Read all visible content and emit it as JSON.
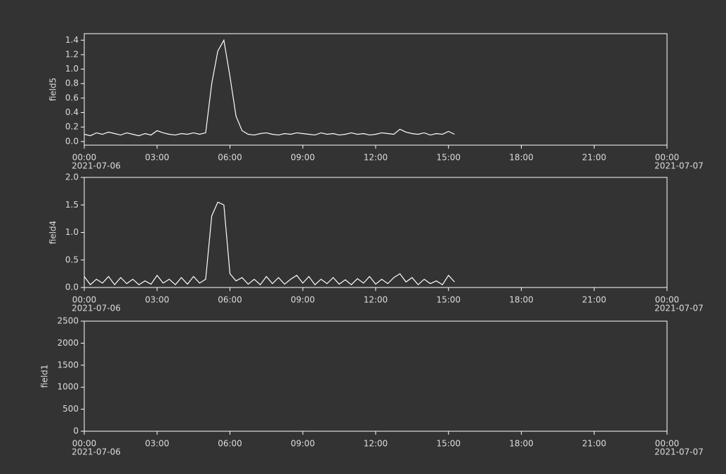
{
  "chart_data": [
    {
      "type": "line",
      "ylabel": "field5",
      "xlim": [
        0,
        24
      ],
      "ylim": [
        -0.05,
        1.49
      ],
      "xticks": [
        {
          "value": 0,
          "label": "00:00",
          "date": "2021-07-06"
        },
        {
          "value": 3,
          "label": "03:00"
        },
        {
          "value": 6,
          "label": "06:00"
        },
        {
          "value": 9,
          "label": "09:00"
        },
        {
          "value": 12,
          "label": "12:00"
        },
        {
          "value": 15,
          "label": "15:00"
        },
        {
          "value": 18,
          "label": "18:00"
        },
        {
          "value": 21,
          "label": "21:00"
        },
        {
          "value": 24,
          "label": "00:00",
          "date": "2021-07-07"
        }
      ],
      "yticks": [
        {
          "value": 0,
          "label": "0.0"
        },
        0.2,
        0.4,
        0.6,
        0.8,
        {
          "value": 1,
          "label": "1.0"
        },
        1.2,
        1.4
      ],
      "x": [
        0,
        0.25,
        0.5,
        0.75,
        1,
        1.25,
        1.5,
        1.75,
        2,
        2.25,
        2.5,
        2.75,
        3,
        3.25,
        3.5,
        3.75,
        4,
        4.25,
        4.5,
        4.75,
        5,
        5.25,
        5.5,
        5.75,
        6,
        6.25,
        6.5,
        6.75,
        7,
        7.25,
        7.5,
        7.75,
        8,
        8.25,
        8.5,
        8.75,
        9,
        9.25,
        9.5,
        9.75,
        10,
        10.25,
        10.5,
        10.75,
        11,
        11.25,
        11.5,
        11.75,
        12,
        12.25,
        12.5,
        12.75,
        13,
        13.25,
        13.5,
        13.75,
        14,
        14.25,
        14.5,
        14.75,
        15,
        15.25
      ],
      "series": [
        {
          "color": "#ffffff",
          "values": [
            0.1,
            0.08,
            0.12,
            0.1,
            0.13,
            0.11,
            0.09,
            0.12,
            0.1,
            0.08,
            0.11,
            0.09,
            0.15,
            0.12,
            0.1,
            0.09,
            0.11,
            0.1,
            0.12,
            0.1,
            0.12,
            0.8,
            1.25,
            1.4,
            0.9,
            0.35,
            0.15,
            0.1,
            0.09,
            0.11,
            0.12,
            0.1,
            0.09,
            0.11,
            0.1,
            0.12,
            0.11,
            0.1,
            0.09,
            0.12,
            0.1,
            0.11,
            0.09,
            0.1,
            0.12,
            0.1,
            0.11,
            0.09,
            0.1,
            0.12,
            0.11,
            0.1,
            0.17,
            0.13,
            0.11,
            0.1,
            0.12,
            0.09,
            0.11,
            0.1,
            0.14,
            0.1
          ]
        }
      ]
    },
    {
      "type": "line",
      "ylabel": "field4",
      "xlim": [
        0,
        24
      ],
      "ylim": [
        0,
        2
      ],
      "xticks": [
        {
          "value": 0,
          "label": "00:00",
          "date": "2021-07-06"
        },
        {
          "value": 3,
          "label": "03:00"
        },
        {
          "value": 6,
          "label": "06:00"
        },
        {
          "value": 9,
          "label": "09:00"
        },
        {
          "value": 12,
          "label": "12:00"
        },
        {
          "value": 15,
          "label": "15:00"
        },
        {
          "value": 18,
          "label": "18:00"
        },
        {
          "value": 21,
          "label": "21:00"
        },
        {
          "value": 24,
          "label": "00:00",
          "date": "2021-07-07"
        }
      ],
      "yticks": [
        {
          "value": 0,
          "label": "0.0"
        },
        0.5,
        {
          "value": 1,
          "label": "1.0"
        },
        1.5,
        {
          "value": 2,
          "label": "2.0"
        }
      ],
      "x": [
        0,
        0.25,
        0.5,
        0.75,
        1,
        1.25,
        1.5,
        1.75,
        2,
        2.25,
        2.5,
        2.75,
        3,
        3.25,
        3.5,
        3.75,
        4,
        4.25,
        4.5,
        4.75,
        5,
        5.25,
        5.5,
        5.75,
        6,
        6.25,
        6.5,
        6.75,
        7,
        7.25,
        7.5,
        7.75,
        8,
        8.25,
        8.5,
        8.75,
        9,
        9.25,
        9.5,
        9.75,
        10,
        10.25,
        10.5,
        10.75,
        11,
        11.25,
        11.5,
        11.75,
        12,
        12.25,
        12.5,
        12.75,
        13,
        13.25,
        13.5,
        13.75,
        14,
        14.25,
        14.5,
        14.75,
        15,
        15.25
      ],
      "series": [
        {
          "color": "#ffffff",
          "values": [
            0.2,
            0.05,
            0.15,
            0.08,
            0.2,
            0.05,
            0.18,
            0.07,
            0.15,
            0.05,
            0.12,
            0.06,
            0.22,
            0.08,
            0.15,
            0.05,
            0.18,
            0.06,
            0.2,
            0.08,
            0.15,
            1.3,
            1.55,
            1.5,
            0.25,
            0.12,
            0.18,
            0.06,
            0.15,
            0.05,
            0.2,
            0.07,
            0.18,
            0.06,
            0.15,
            0.22,
            0.08,
            0.2,
            0.05,
            0.15,
            0.07,
            0.18,
            0.06,
            0.14,
            0.05,
            0.16,
            0.08,
            0.2,
            0.06,
            0.15,
            0.07,
            0.18,
            0.25,
            0.1,
            0.18,
            0.05,
            0.15,
            0.07,
            0.12,
            0.05,
            0.22,
            0.1
          ]
        }
      ]
    },
    {
      "type": "line",
      "ylabel": "field1",
      "xlim": [
        0,
        24
      ],
      "ylim": [
        0,
        2500
      ],
      "xticks": [
        {
          "value": 0,
          "label": "00:00",
          "date": "2021-07-06"
        },
        {
          "value": 3,
          "label": "03:00"
        },
        {
          "value": 6,
          "label": "06:00"
        },
        {
          "value": 9,
          "label": "09:00"
        },
        {
          "value": 12,
          "label": "12:00"
        },
        {
          "value": 15,
          "label": "15:00"
        },
        {
          "value": 18,
          "label": "18:00"
        },
        {
          "value": 21,
          "label": "21:00"
        },
        {
          "value": 24,
          "label": "00:00",
          "date": "2021-07-07"
        }
      ],
      "yticks": [
        0,
        500,
        1000,
        1500,
        2000,
        2500
      ],
      "x": [],
      "series": []
    }
  ]
}
